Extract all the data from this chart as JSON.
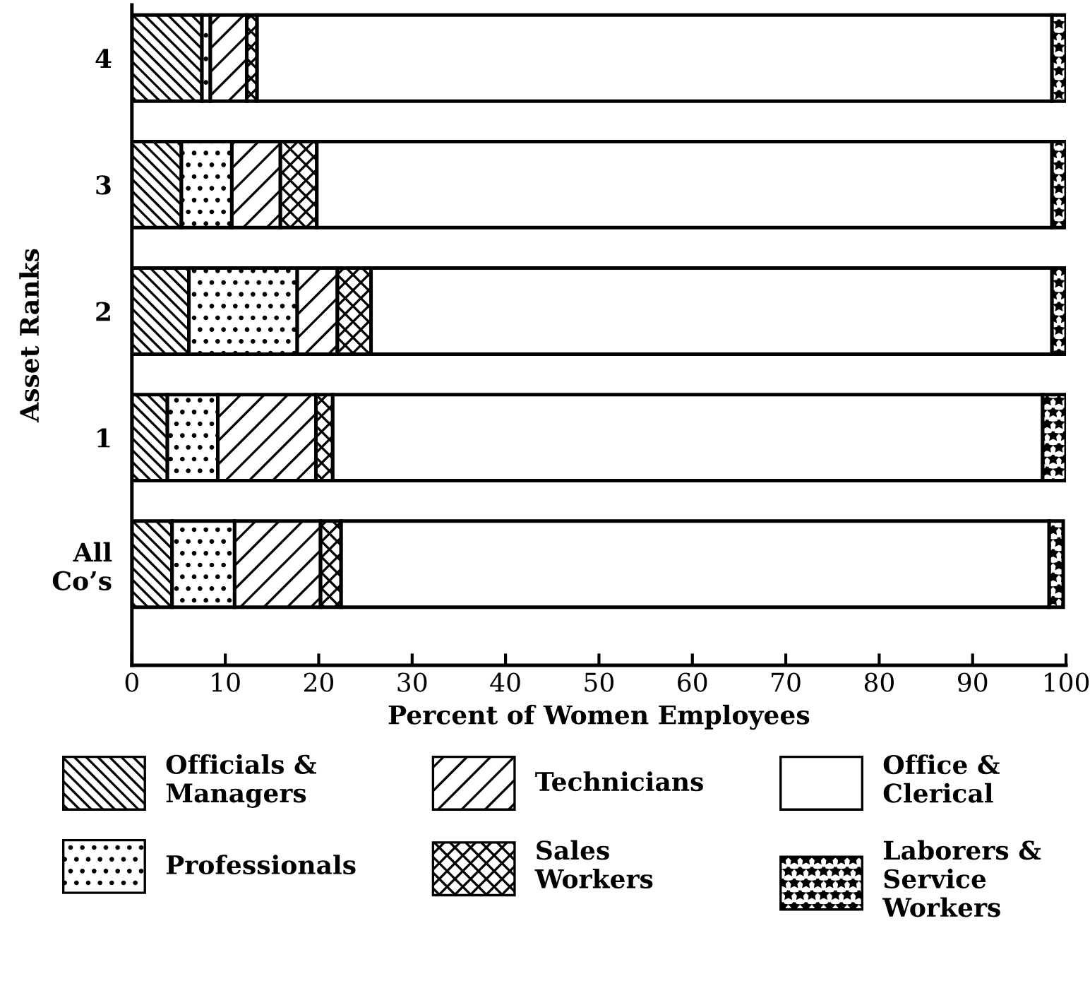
{
  "chart_data": {
    "type": "bar",
    "orientation": "horizontal",
    "stacked": true,
    "xlabel": "Percent of Women Employees",
    "ylabel": "Asset Ranks",
    "categories": [
      "4",
      "3",
      "2",
      "1",
      "All\nCo’s"
    ],
    "series": [
      {
        "name": "Officials &\nManagers",
        "color": "#000000",
        "values": [
          7.5,
          5.3,
          6.1,
          3.8,
          4.3
        ]
      },
      {
        "name": "Professionals",
        "color": "#000000",
        "values": [
          0.9,
          5.4,
          11.6,
          5.4,
          6.7
        ]
      },
      {
        "name": "Technicians",
        "color": "#000000",
        "values": [
          3.9,
          5.2,
          4.3,
          10.5,
          9.2
        ]
      },
      {
        "name": "Sales\nWorkers",
        "color": "#000000",
        "values": [
          1.1,
          3.9,
          3.6,
          1.8,
          2.2
        ]
      },
      {
        "name": "Office &\nClerical",
        "color": "#ffffff",
        "values": [
          85.1,
          78.7,
          72.9,
          76.0,
          75.8
        ]
      },
      {
        "name": "Laborers &\nService\nWorkers",
        "color": "#000000",
        "values": [
          1.5,
          1.5,
          1.5,
          2.5,
          1.5
        ]
      }
    ],
    "xlim": [
      0,
      100
    ],
    "xticks": [
      0,
      10,
      20,
      30,
      40,
      50,
      60,
      70,
      80,
      90,
      100
    ],
    "grid": false,
    "legend": "bottom"
  }
}
